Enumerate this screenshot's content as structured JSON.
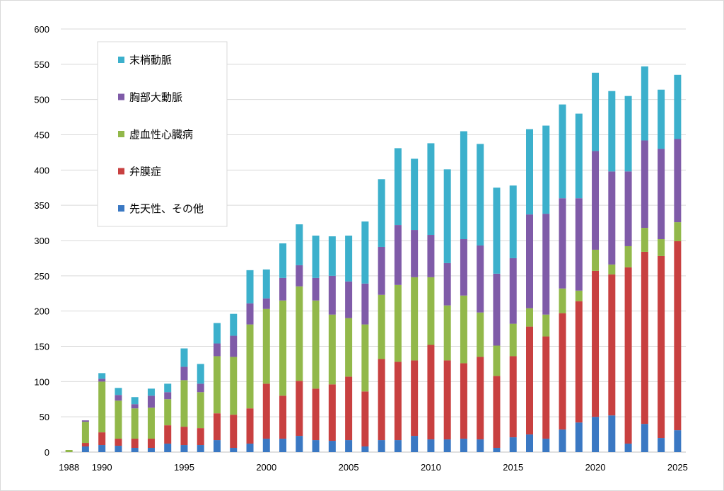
{
  "chart_data": {
    "type": "bar",
    "stacked": true,
    "title": "",
    "xlabel": "",
    "ylabel": "",
    "ylim": [
      0,
      600
    ],
    "ytick_step": 50,
    "grid": true,
    "legend_position": "top-left",
    "x": [
      1988,
      1989,
      1990,
      1991,
      1992,
      1993,
      1994,
      1995,
      1996,
      1997,
      1998,
      1999,
      2000,
      2001,
      2002,
      2003,
      2004,
      2005,
      2006,
      2007,
      2008,
      2009,
      2010,
      2011,
      2012,
      2013,
      2014,
      2015,
      2016,
      2017,
      2018,
      2019,
      2020,
      2021,
      2022,
      2023,
      2024,
      2025
    ],
    "x_tick_labels": [
      "1988",
      "1990",
      "1995",
      "2000",
      "2005",
      "2010",
      "2015",
      "2020",
      "2025"
    ],
    "series": [
      {
        "name": "先天性、その他",
        "color": "#3a78c3",
        "values": [
          0,
          8,
          10,
          9,
          6,
          6,
          12,
          10,
          10,
          17,
          6,
          12,
          19,
          19,
          23,
          17,
          16,
          17,
          8,
          17,
          17,
          23,
          18,
          18,
          19,
          18,
          6,
          21,
          25,
          19,
          32,
          42,
          50,
          52,
          12,
          40,
          20,
          31
        ]
      },
      {
        "name": "弁膜症",
        "color": "#c84040",
        "values": [
          0,
          5,
          18,
          10,
          13,
          13,
          26,
          26,
          24,
          38,
          47,
          50,
          78,
          61,
          78,
          73,
          80,
          90,
          78,
          115,
          111,
          107,
          134,
          112,
          107,
          117,
          102,
          115,
          153,
          145,
          165,
          172,
          207,
          200,
          250,
          244,
          258,
          268
        ]
      },
      {
        "name": "虚血性心臓病",
        "color": "#92b84a",
        "values": [
          3,
          30,
          72,
          54,
          43,
          44,
          37,
          66,
          51,
          81,
          82,
          119,
          106,
          135,
          134,
          125,
          99,
          83,
          95,
          91,
          109,
          118,
          96,
          78,
          96,
          63,
          43,
          46,
          26,
          31,
          35,
          15,
          30,
          14,
          30,
          34,
          24,
          27
        ]
      },
      {
        "name": "胸部大動脈",
        "color": "#7f5ba8",
        "values": [
          0,
          2,
          4,
          8,
          6,
          17,
          10,
          19,
          12,
          18,
          30,
          30,
          15,
          32,
          30,
          32,
          55,
          52,
          58,
          68,
          85,
          67,
          60,
          60,
          80,
          95,
          102,
          93,
          133,
          143,
          128,
          131,
          140,
          132,
          106,
          124,
          128,
          118
        ]
      },
      {
        "name": "末梢動脈",
        "color": "#3cb0cc",
        "values": [
          0,
          0,
          8,
          10,
          10,
          10,
          12,
          26,
          28,
          29,
          31,
          47,
          41,
          49,
          58,
          60,
          56,
          65,
          88,
          96,
          109,
          101,
          130,
          133,
          153,
          144,
          122,
          103,
          121,
          125,
          133,
          120,
          111,
          114,
          107,
          105,
          84,
          91
        ]
      }
    ]
  }
}
